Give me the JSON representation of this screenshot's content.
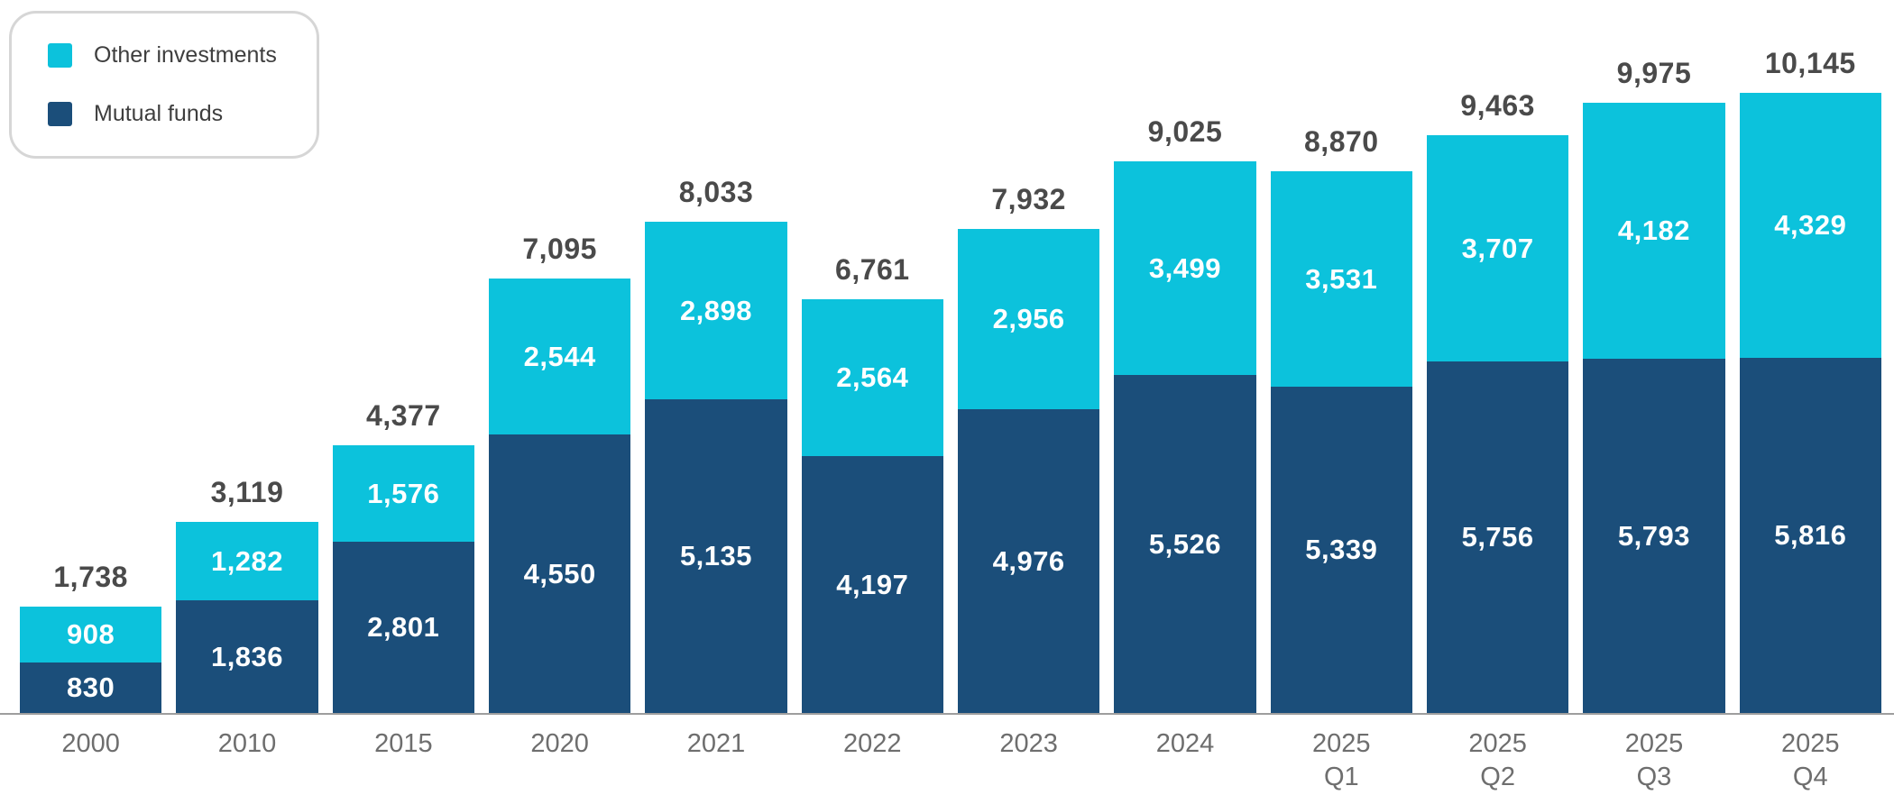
{
  "chart_data": {
    "type": "bar",
    "stacked": true,
    "title": "",
    "xlabel": "",
    "ylabel": "",
    "grid": false,
    "legend_position": "top-left",
    "value_label_format": "thousands-comma",
    "categories": [
      "2000",
      "2010",
      "2015",
      "2020",
      "2021",
      "2022",
      "2023",
      "2024",
      "2025\nQ1",
      "2025\nQ2",
      "2025\nQ3",
      "2025\nQ4"
    ],
    "series": [
      {
        "name": "Other investments",
        "color": "#0cc2dc",
        "values": [
          908,
          1282,
          1576,
          2544,
          2898,
          2564,
          2956,
          3499,
          3531,
          3707,
          4182,
          4329
        ]
      },
      {
        "name": "Mutual funds",
        "color": "#1b4e7a",
        "values": [
          830,
          1836,
          2801,
          4550,
          5135,
          4197,
          4976,
          5526,
          5339,
          5756,
          5793,
          5816
        ]
      }
    ],
    "totals": [
      1738,
      3119,
      4377,
      7095,
      8033,
      6761,
      7932,
      9025,
      8870,
      9463,
      9975,
      10145
    ]
  },
  "legend": {
    "items": [
      {
        "label": "Other investments"
      },
      {
        "label": "Mutual funds"
      }
    ]
  },
  "colors": {
    "other_investments": "#0cc2dc",
    "mutual_funds": "#1b4e7a",
    "total_label": "#4a4a4a",
    "segment_label": "#ffffff",
    "axis_line": "#9e9e9e",
    "x_axis_label": "#6e6e6e",
    "legend_border": "#d6d6d6",
    "background": "#ffffff"
  }
}
